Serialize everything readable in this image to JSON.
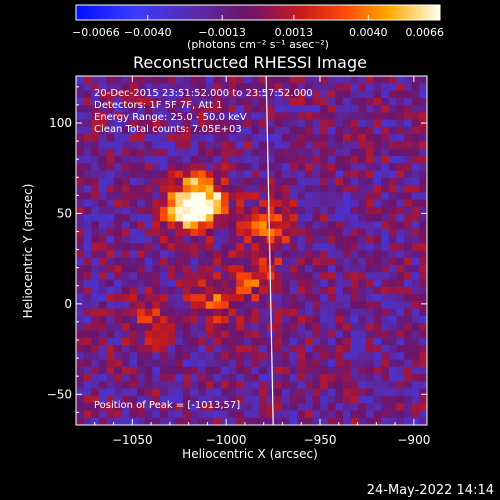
{
  "chart_data": {
    "type": "heatmap",
    "title": "Reconstructed RHESSI Image",
    "xlabel": "Heliocentric X (arcsec)",
    "ylabel": "Heliocentric Y (arcsec)",
    "xlim": [
      -1080,
      -893
    ],
    "ylim": [
      -67,
      126
    ],
    "x_ticks": [
      -1050,
      -1000,
      -950,
      -900
    ],
    "x_tick_labels": [
      "−1050",
      "−1000",
      "−950",
      "−900"
    ],
    "y_ticks": [
      -50,
      0,
      50,
      100
    ],
    "y_tick_labels": [
      "−50",
      "0",
      "50",
      "100"
    ],
    "colorbar": {
      "min": -0.0066,
      "max": 0.0066,
      "ticks": [
        -0.0066,
        -0.004,
        -0.0013,
        0.0013,
        0.004,
        0.0066
      ],
      "tick_labels": [
        "−0.0066",
        "−0.0040",
        "−0.0013",
        "0.0013",
        "0.0040",
        "0.0066"
      ],
      "units_label": "(photons cm⁻² s⁻¹ asec⁻²)"
    },
    "annotations": [
      "20-Dec-2015 23:51:52.000 to 23:57:52.000",
      "Detectors: 1F 5F 7F, Att 1",
      "Energy Range: 25.0 - 50.0 keV",
      "Clean     Total counts: 7.05E+03",
      "Position of Peak = [-1013,57]"
    ],
    "limb_x": -976,
    "grid": {
      "nx": 46,
      "ny": 48,
      "x_range": [
        -1080,
        -893
      ],
      "y_range": [
        -67,
        126
      ]
    },
    "sources": [
      {
        "x": -1013,
        "y": 57,
        "amp": 1.0
      },
      {
        "x": -1021,
        "y": 53,
        "amp": 0.75
      },
      {
        "x": -977,
        "y": 45,
        "amp": 0.55
      },
      {
        "x": -983,
        "y": 16,
        "amp": 0.45
      },
      {
        "x": -1005,
        "y": 2,
        "amp": 0.45
      },
      {
        "x": -1040,
        "y": -8,
        "amp": 0.35
      }
    ]
  },
  "footer": {
    "date_stamp": "24-May-2022 14:14"
  }
}
